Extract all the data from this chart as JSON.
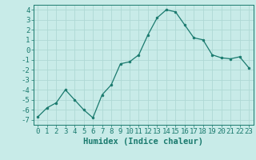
{
  "x": [
    0,
    1,
    2,
    3,
    4,
    5,
    6,
    7,
    8,
    9,
    10,
    11,
    12,
    13,
    14,
    15,
    16,
    17,
    18,
    19,
    20,
    21,
    22,
    23
  ],
  "y": [
    -6.7,
    -5.8,
    -5.3,
    -4.0,
    -5.0,
    -6.0,
    -6.8,
    -4.5,
    -3.5,
    -1.4,
    -1.2,
    -0.5,
    1.5,
    3.2,
    4.0,
    3.8,
    2.5,
    1.2,
    1.0,
    -0.5,
    -0.8,
    -0.9,
    -0.7,
    -1.8
  ],
  "line_color": "#1a7a6e",
  "marker_color": "#1a7a6e",
  "bg_color": "#c8ebe8",
  "grid_color": "#aed8d4",
  "xlabel": "Humidex (Indice chaleur)",
  "xlim": [
    -0.5,
    23.5
  ],
  "ylim": [
    -7.5,
    4.5
  ],
  "yticks": [
    -7,
    -6,
    -5,
    -4,
    -3,
    -2,
    -1,
    0,
    1,
    2,
    3,
    4
  ],
  "xticks": [
    0,
    1,
    2,
    3,
    4,
    5,
    6,
    7,
    8,
    9,
    10,
    11,
    12,
    13,
    14,
    15,
    16,
    17,
    18,
    19,
    20,
    21,
    22,
    23
  ],
  "font_color": "#1a7a6e",
  "tick_fontsize": 6.5,
  "xlabel_fontsize": 7.5
}
